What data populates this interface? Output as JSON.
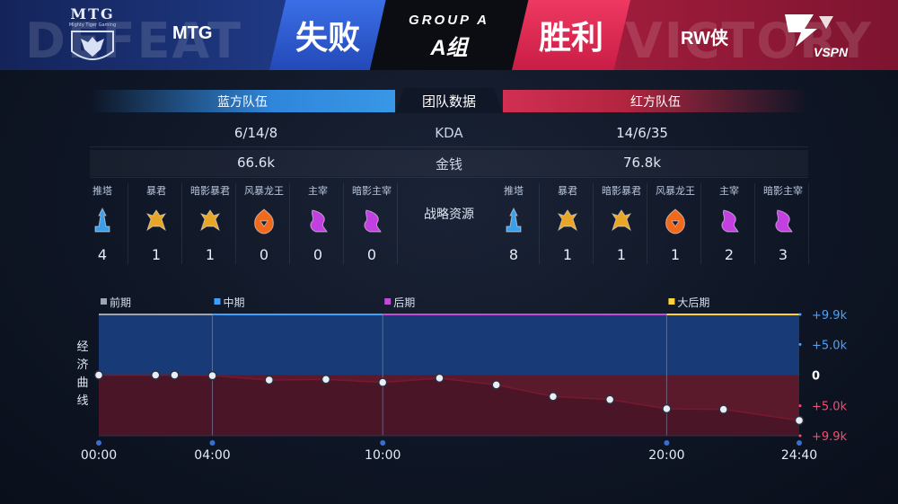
{
  "header": {
    "left_ghost": "DEFEAT",
    "right_ghost": "VICTORY",
    "left_logo_text": "MTG",
    "left_logo_sub": "Mighty Tiger Gaming",
    "left_team": "MTG",
    "left_result": "失败",
    "group_line1": "GROUP A",
    "group_line2": "A组",
    "right_result": "胜利",
    "right_team": "RW侠",
    "right_logo_text": "VSPN"
  },
  "team_data": {
    "blue_label": "蓝方队伍",
    "title": "团队数据",
    "red_label": "红方队伍",
    "rows": [
      {
        "label": "KDA",
        "blue": "6/14/8",
        "red": "14/6/35"
      },
      {
        "label": "金钱",
        "blue": "66.6k",
        "red": "76.8k"
      }
    ]
  },
  "resources": {
    "label": "战略资源",
    "blue": [
      {
        "name": "推塔",
        "count": "4",
        "icon": "tower-icon",
        "color": "#3d9ee8"
      },
      {
        "name": "暴君",
        "count": "1",
        "icon": "tyrant-icon",
        "color": "#e8a629"
      },
      {
        "name": "暗影暴君",
        "count": "1",
        "icon": "shadow-tyrant-icon",
        "color": "#e8a629"
      },
      {
        "name": "风暴龙王",
        "count": "0",
        "icon": "storm-dragon-icon",
        "color": "#f06a1e"
      },
      {
        "name": "主宰",
        "count": "0",
        "icon": "overlord-icon",
        "color": "#c23fe0"
      },
      {
        "name": "暗影主宰",
        "count": "0",
        "icon": "shadow-overlord-icon",
        "color": "#c23fe0"
      }
    ],
    "red": [
      {
        "name": "推塔",
        "count": "8",
        "icon": "tower-icon",
        "color": "#3d9ee8"
      },
      {
        "name": "暴君",
        "count": "1",
        "icon": "tyrant-icon",
        "color": "#e8a629"
      },
      {
        "name": "暗影暴君",
        "count": "1",
        "icon": "shadow-tyrant-icon",
        "color": "#e8a629"
      },
      {
        "name": "风暴龙王",
        "count": "1",
        "icon": "storm-dragon-icon",
        "color": "#f06a1e"
      },
      {
        "name": "主宰",
        "count": "2",
        "icon": "overlord-icon",
        "color": "#c23fe0"
      },
      {
        "name": "暗影主宰",
        "count": "3",
        "icon": "shadow-overlord-icon",
        "color": "#c23fe0"
      }
    ]
  },
  "chart_data": {
    "type": "area",
    "ylabel": "经济曲线",
    "xlim": [
      0,
      24.667
    ],
    "ylim": [
      -9.9,
      9.9
    ],
    "x_ticks": [
      {
        "value": 0,
        "label": "00:00"
      },
      {
        "value": 4,
        "label": "04:00"
      },
      {
        "value": 10,
        "label": "10:00"
      },
      {
        "value": 20,
        "label": "20:00"
      },
      {
        "value": 24.667,
        "label": "24:40"
      }
    ],
    "y_ticks": [
      {
        "value": 9.9,
        "label": "+9.9k",
        "color": "#4aa3ff"
      },
      {
        "value": 5.0,
        "label": "+5.0k",
        "color": "#4aa3ff"
      },
      {
        "value": 0,
        "label": "0",
        "color": "#ffffff"
      },
      {
        "value": -5.0,
        "label": "+5.0k",
        "color": "#ff4a6e"
      },
      {
        "value": -9.9,
        "label": "+9.9k",
        "color": "#ff4a6e"
      }
    ],
    "phases": [
      {
        "name": "前期",
        "start": 0,
        "color": "#9aa6b8"
      },
      {
        "name": "中期",
        "start": 4,
        "color": "#3ea1ff"
      },
      {
        "name": "后期",
        "start": 10,
        "color": "#c04dd8"
      },
      {
        "name": "大后期",
        "start": 20,
        "color": "#ffd23a"
      }
    ],
    "series": [
      {
        "x": [
          0,
          2,
          2.67,
          4,
          6,
          8,
          10,
          12,
          14,
          16,
          18,
          20,
          22,
          24.667
        ],
        "values": [
          0,
          0,
          0,
          -0.1,
          -0.8,
          -0.7,
          -1.2,
          -0.5,
          -1.6,
          -3.5,
          -4.0,
          -5.5,
          -5.6,
          -7.4
        ]
      }
    ],
    "grid": "vertical lines at phase boundaries",
    "colors": {
      "blue_area": "#183b78",
      "red_area": "#4a1526",
      "line": "#7a1830",
      "dot": "#e9edf4"
    }
  }
}
